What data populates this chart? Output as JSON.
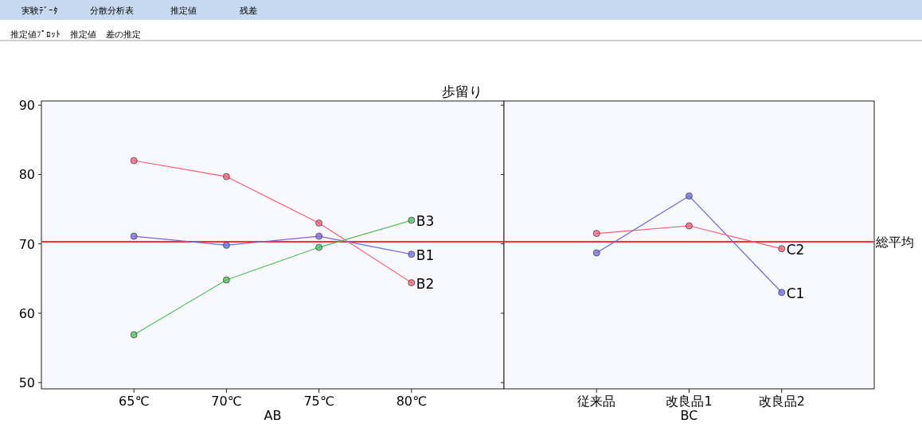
{
  "chart_data": [
    {
      "type": "line",
      "title": "歩留り",
      "xlabel": "AB",
      "categories": [
        "65℃",
        "70℃",
        "75℃",
        "80℃"
      ],
      "series": [
        {
          "name": "B1",
          "color": "#6b6be0",
          "values": [
            71.1,
            69.8,
            71.1,
            68.5
          ]
        },
        {
          "name": "B2",
          "color": "#ff5a6a",
          "values": [
            82.0,
            79.7,
            73.0,
            64.4
          ]
        },
        {
          "name": "B3",
          "color": "#4cc04c",
          "values": [
            56.9,
            64.8,
            69.5,
            73.4
          ]
        }
      ],
      "ylim": [
        49.1,
        90.6
      ],
      "yticks": [
        50,
        60,
        70,
        80,
        90
      ],
      "ref_lines": [
        {
          "axis": "y",
          "value": 70.3,
          "color": "#ff3030"
        }
      ],
      "annotations": [
        "実験ﾃﾞｰﾀ",
        "分散分析表",
        "推定値",
        "残差",
        "推定値ﾌﾟﾛｯﾄ",
        "推定値",
        "差の推定"
      ],
      "marker": "circle",
      "line_style": "solid",
      "grid": false,
      "legend": false
    },
    {
      "type": "line",
      "xlabel": "BC",
      "categories": [
        "従来品",
        "改良品1",
        "改良品2"
      ],
      "series": [
        {
          "name": "C1",
          "color": "#6b6be0",
          "values": [
            68.7,
            76.9,
            63.0
          ]
        },
        {
          "name": "C2",
          "color": "#ff5a6a",
          "values": [
            71.5,
            72.6,
            69.3
          ]
        }
      ],
      "ylim": [
        49.1,
        90.6
      ],
      "yticks": [
        50,
        60,
        70,
        80,
        90
      ],
      "tick_labels": "x",
      "ref_lines": [
        {
          "axis": "y",
          "value": 70.3,
          "label": "総平均",
          "color": "#ff3030"
        }
      ],
      "marker": "circle",
      "line_style": "solid",
      "grid": false,
      "legend": false
    }
  ]
}
